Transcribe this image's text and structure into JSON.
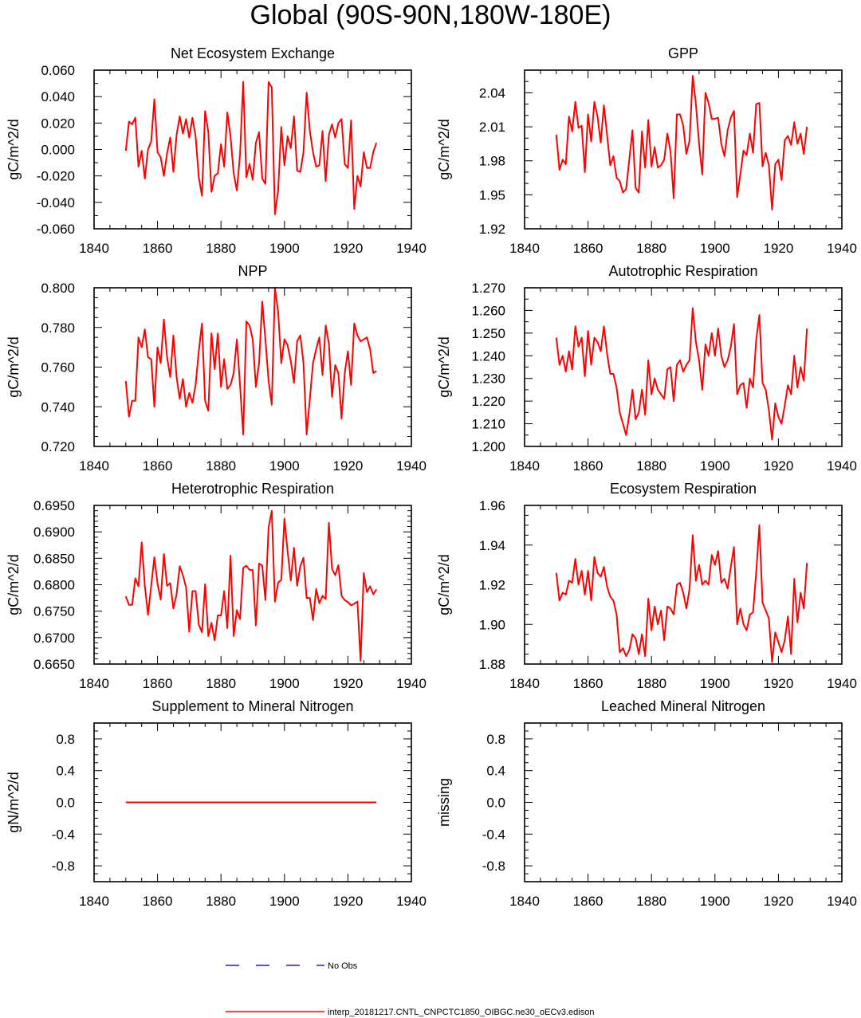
{
  "figure_title": "Global (90S-90N,180W-180E)",
  "legend": {
    "obs_label": "No Obs",
    "obs_color": "#1f1fc8",
    "model_label": "interp_20181217.CNTL_CNPCTC1850_OIBGC.ne30_oECv3.edison",
    "model_color": "#ff0000"
  },
  "chart_data": [
    {
      "type": "line",
      "title": "Net Ecosystem Exchange",
      "ylabel": "gC/m^2/d",
      "xlabel": "",
      "xlim": [
        1840,
        1940
      ],
      "xticks": [
        1840,
        1860,
        1880,
        1900,
        1920,
        1940
      ],
      "ylim": [
        -0.06,
        0.06
      ],
      "yticks": [
        -0.06,
        -0.04,
        -0.02,
        0.0,
        0.02,
        0.04,
        0.06
      ],
      "ytick_labels": [
        "-0.060",
        "-0.040",
        "-0.020",
        "0.000",
        "0.020",
        "0.040",
        "0.060"
      ],
      "yminor": [
        -0.05,
        -0.03,
        -0.01,
        0.01,
        0.03,
        0.05
      ],
      "x_start": 1850,
      "series": [
        {
          "name": "interp_20181217.CNTL_CNPCTC1850_OIBGC.ne30_oECv3.edison",
          "color": "#ff0000",
          "values": [
            -0.001,
            0.021,
            0.019,
            0.024,
            -0.013,
            -0.001,
            -0.022,
            0.0,
            0.006,
            0.038,
            -0.002,
            -0.006,
            -0.02,
            -0.003,
            0.009,
            -0.017,
            0.011,
            0.025,
            0.012,
            0.023,
            0.009,
            0.024,
            0.01,
            -0.021,
            -0.035,
            0.029,
            0.013,
            -0.032,
            -0.02,
            -0.018,
            0.004,
            -0.013,
            0.028,
            0.01,
            -0.018,
            -0.031,
            -0.004,
            0.051,
            -0.021,
            -0.011,
            -0.023,
            0.005,
            0.013,
            -0.022,
            -0.026,
            0.051,
            0.047,
            -0.049,
            -0.031,
            0.017,
            -0.012,
            0.01,
            0.001,
            0.025,
            -0.016,
            -0.017,
            -0.002,
            0.043,
            0.014,
            -0.002,
            -0.013,
            -0.012,
            0.014,
            -0.024,
            0.011,
            0.019,
            0.009,
            0.02,
            0.023,
            -0.011,
            -0.014,
            0.022,
            -0.045,
            -0.02,
            -0.028,
            -0.002,
            -0.014,
            -0.014,
            -0.002,
            0.005
          ]
        }
      ]
    },
    {
      "type": "line",
      "title": "GPP",
      "ylabel": "gC/m^2/d",
      "xlabel": "",
      "xlim": [
        1840,
        1940
      ],
      "xticks": [
        1840,
        1860,
        1880,
        1900,
        1920,
        1940
      ],
      "ylim": [
        1.92,
        2.06
      ],
      "yticks": [
        1.92,
        1.95,
        1.98,
        2.01,
        2.04
      ],
      "ytick_labels": [
        "1.92",
        "1.95",
        "1.98",
        "2.01",
        "2.04"
      ],
      "yminor": [
        1.93,
        1.94,
        1.96,
        1.97,
        1.99,
        2.0,
        2.02,
        2.03,
        2.05,
        2.06
      ],
      "x_start": 1850,
      "series": [
        {
          "name": "interp_20181217.CNTL_CNPCTC1850_OIBGC.ne30_oECv3.edison",
          "color": "#ff0000",
          "values": [
            2.003,
            1.972,
            1.981,
            1.977,
            2.019,
            2.006,
            2.032,
            2.009,
            2.011,
            1.97,
            2.021,
            1.997,
            2.032,
            2.019,
            1.996,
            2.029,
            2.003,
            1.976,
            1.984,
            1.965,
            1.962,
            1.952,
            1.955,
            1.981,
            2.007,
            1.956,
            1.952,
            2.006,
            1.974,
            2.016,
            1.975,
            1.992,
            1.974,
            1.976,
            1.981,
            2.004,
            1.988,
            1.947,
            2.021,
            2.021,
            2.011,
            1.986,
            1.998,
            2.055,
            2.03,
            1.995,
            1.968,
            2.04,
            2.031,
            2.017,
            2.017,
            2.018,
            1.995,
            1.984,
            2.007,
            2.018,
            2.024,
            1.948,
            1.968,
            1.989,
            1.985,
            2.004,
            1.987,
            2.03,
            2.031,
            1.975,
            1.987,
            1.976,
            1.937,
            1.977,
            1.981,
            1.963,
            1.998,
            2.002,
            1.994,
            2.014,
            1.995,
            2.004,
            1.986,
            2.01
          ]
        }
      ]
    },
    {
      "type": "line",
      "title": "NPP",
      "ylabel": "gC/m^2/d",
      "xlabel": "",
      "xlim": [
        1840,
        1940
      ],
      "xticks": [
        1840,
        1860,
        1880,
        1900,
        1920,
        1940
      ],
      "ylim": [
        0.72,
        0.8
      ],
      "yticks": [
        0.72,
        0.74,
        0.76,
        0.78,
        0.8
      ],
      "ytick_labels": [
        "0.720",
        "0.740",
        "0.760",
        "0.780",
        "0.800"
      ],
      "yminor": [
        0.725,
        0.73,
        0.735,
        0.745,
        0.75,
        0.755,
        0.765,
        0.77,
        0.775,
        0.785,
        0.79,
        0.795
      ],
      "x_start": 1850,
      "series": [
        {
          "name": "interp_20181217.CNTL_CNPCTC1850_OIBGC.ne30_oECv3.edison",
          "color": "#ff0000",
          "values": [
            0.753,
            0.735,
            0.743,
            0.743,
            0.775,
            0.77,
            0.779,
            0.765,
            0.764,
            0.74,
            0.77,
            0.762,
            0.784,
            0.765,
            0.755,
            0.776,
            0.755,
            0.744,
            0.754,
            0.74,
            0.747,
            0.742,
            0.751,
            0.768,
            0.782,
            0.743,
            0.738,
            0.777,
            0.759,
            0.777,
            0.75,
            0.764,
            0.749,
            0.751,
            0.757,
            0.774,
            0.751,
            0.726,
            0.783,
            0.781,
            0.774,
            0.75,
            0.762,
            0.793,
            0.774,
            0.753,
            0.741,
            0.8,
            0.788,
            0.762,
            0.774,
            0.771,
            0.763,
            0.752,
            0.773,
            0.776,
            0.762,
            0.726,
            0.744,
            0.762,
            0.769,
            0.775,
            0.756,
            0.781,
            0.772,
            0.745,
            0.761,
            0.757,
            0.734,
            0.757,
            0.768,
            0.751,
            0.782,
            0.776,
            0.773,
            0.774,
            0.775,
            0.769,
            0.757,
            0.758
          ]
        }
      ]
    },
    {
      "type": "line",
      "title": "Autotrophic Respiration",
      "ylabel": "gC/m^2/d",
      "xlabel": "",
      "xlim": [
        1840,
        1940
      ],
      "xticks": [
        1840,
        1860,
        1880,
        1900,
        1920,
        1940
      ],
      "ylim": [
        1.2,
        1.27
      ],
      "yticks": [
        1.2,
        1.21,
        1.22,
        1.23,
        1.24,
        1.25,
        1.26,
        1.27
      ],
      "ytick_labels": [
        "1.200",
        "1.210",
        "1.220",
        "1.230",
        "1.240",
        "1.250",
        "1.260",
        "1.270"
      ],
      "yminor": [
        1.205,
        1.215,
        1.225,
        1.235,
        1.245,
        1.255,
        1.265
      ],
      "x_start": 1850,
      "series": [
        {
          "name": "interp_20181217.CNTL_CNPCTC1850_OIBGC.ne30_oECv3.edison",
          "color": "#ff0000",
          "values": [
            1.248,
            1.236,
            1.24,
            1.233,
            1.242,
            1.234,
            1.253,
            1.244,
            1.248,
            1.231,
            1.251,
            1.236,
            1.248,
            1.246,
            1.242,
            1.253,
            1.241,
            1.232,
            1.232,
            1.226,
            1.215,
            1.21,
            1.205,
            1.214,
            1.225,
            1.212,
            1.215,
            1.225,
            1.214,
            1.238,
            1.223,
            1.23,
            1.225,
            1.223,
            1.221,
            1.234,
            1.235,
            1.22,
            1.236,
            1.238,
            1.233,
            1.236,
            1.238,
            1.261,
            1.246,
            1.238,
            1.225,
            1.245,
            1.24,
            1.25,
            1.24,
            1.252,
            1.24,
            1.235,
            1.238,
            1.244,
            1.254,
            1.223,
            1.227,
            1.228,
            1.217,
            1.23,
            1.226,
            1.247,
            1.258,
            1.228,
            1.225,
            1.216,
            1.203,
            1.219,
            1.213,
            1.21,
            1.218,
            1.227,
            1.223,
            1.24,
            1.226,
            1.235,
            1.229,
            1.252
          ]
        }
      ]
    },
    {
      "type": "line",
      "title": "Heterotrophic Respiration",
      "ylabel": "gC/m^2/d",
      "xlabel": "",
      "xlim": [
        1840,
        1940
      ],
      "xticks": [
        1840,
        1860,
        1880,
        1900,
        1920,
        1940
      ],
      "ylim": [
        0.665,
        0.695
      ],
      "yticks": [
        0.665,
        0.67,
        0.675,
        0.68,
        0.685,
        0.69,
        0.695
      ],
      "ytick_labels": [
        "0.6650",
        "0.6700",
        "0.6750",
        "0.6800",
        "0.6850",
        "0.6900",
        "0.6950"
      ],
      "yminor": [
        0.666,
        0.667,
        0.668,
        0.669,
        0.671,
        0.672,
        0.673,
        0.674,
        0.676,
        0.677,
        0.678,
        0.679,
        0.681,
        0.682,
        0.683,
        0.684,
        0.686,
        0.687,
        0.688,
        0.689,
        0.691,
        0.692,
        0.693,
        0.694
      ],
      "x_start": 1850,
      "series": [
        {
          "name": "interp_20181217.CNTL_CNPCTC1850_OIBGC.ne30_oECv3.edison",
          "color": "#ff0000",
          "values": [
            0.6778,
            0.6762,
            0.6762,
            0.6812,
            0.6797,
            0.688,
            0.6798,
            0.6743,
            0.6798,
            0.6852,
            0.6802,
            0.6772,
            0.6858,
            0.6798,
            0.6803,
            0.6755,
            0.6782,
            0.6835,
            0.6818,
            0.6795,
            0.6711,
            0.6788,
            0.6788,
            0.6725,
            0.671,
            0.6801,
            0.6703,
            0.6728,
            0.6695,
            0.6742,
            0.6742,
            0.6788,
            0.6718,
            0.6855,
            0.6703,
            0.6752,
            0.6735,
            0.6832,
            0.6836,
            0.6828,
            0.6828,
            0.6723,
            0.684,
            0.6836,
            0.6771,
            0.6908,
            0.694,
            0.6768,
            0.6804,
            0.6809,
            0.6925,
            0.6863,
            0.6808,
            0.687,
            0.6798,
            0.6835,
            0.6851,
            0.6775,
            0.6775,
            0.6733,
            0.6792,
            0.6765,
            0.6779,
            0.6773,
            0.6917,
            0.683,
            0.6818,
            0.6837,
            0.6779,
            0.6771,
            0.6767,
            0.6761,
            0.6764,
            0.6768,
            0.6656,
            0.6822,
            0.6786,
            0.6797,
            0.6782,
            0.6791
          ]
        }
      ]
    },
    {
      "type": "line",
      "title": "Ecosystem Respiration",
      "ylabel": "gC/m^2/d",
      "xlabel": "",
      "xlim": [
        1840,
        1940
      ],
      "xticks": [
        1840,
        1860,
        1880,
        1900,
        1920,
        1940
      ],
      "ylim": [
        1.88,
        1.96
      ],
      "yticks": [
        1.88,
        1.9,
        1.92,
        1.94,
        1.96
      ],
      "ytick_labels": [
        "1.88",
        "1.90",
        "1.92",
        "1.94",
        "1.96"
      ],
      "yminor": [
        1.885,
        1.89,
        1.895,
        1.905,
        1.91,
        1.915,
        1.925,
        1.93,
        1.935,
        1.945,
        1.95,
        1.955
      ],
      "x_start": 1850,
      "series": [
        {
          "name": "interp_20181217.CNTL_CNPCTC1850_OIBGC.ne30_oECv3.edison",
          "color": "#ff0000",
          "values": [
            1.926,
            1.912,
            1.916,
            1.915,
            1.922,
            1.921,
            1.933,
            1.92,
            1.927,
            1.915,
            1.927,
            1.912,
            1.934,
            1.926,
            1.924,
            1.929,
            1.919,
            1.914,
            1.912,
            1.905,
            1.886,
            1.888,
            1.884,
            1.887,
            1.895,
            1.893,
            1.885,
            1.895,
            1.884,
            1.913,
            1.897,
            1.909,
            1.9,
            1.907,
            1.892,
            1.909,
            1.908,
            1.905,
            1.92,
            1.921,
            1.916,
            1.908,
            1.918,
            1.945,
            1.922,
            1.93,
            1.92,
            1.922,
            1.92,
            1.935,
            1.93,
            1.937,
            1.921,
            1.923,
            1.918,
            1.929,
            1.939,
            1.9,
            1.908,
            1.9,
            1.897,
            1.905,
            1.906,
            1.926,
            1.95,
            1.911,
            1.907,
            1.903,
            1.881,
            1.896,
            1.891,
            1.886,
            1.892,
            1.904,
            1.885,
            1.923,
            1.901,
            1.916,
            1.908,
            1.931
          ]
        }
      ]
    },
    {
      "type": "line",
      "title": "Supplement to Mineral Nitrogen",
      "ylabel": "gN/m^2/d",
      "xlabel": "",
      "xlim": [
        1840,
        1940
      ],
      "xticks": [
        1840,
        1860,
        1880,
        1900,
        1920,
        1940
      ],
      "ylim": [
        -1.0,
        1.0
      ],
      "yticks": [
        -0.8,
        -0.4,
        0.0,
        0.4,
        0.8
      ],
      "ytick_labels": [
        "-0.8",
        "-0.4",
        "0.0",
        "0.4",
        "0.8"
      ],
      "yminor": [
        -1.0,
        -0.9,
        -0.7,
        -0.6,
        -0.5,
        -0.3,
        -0.2,
        -0.1,
        0.1,
        0.2,
        0.3,
        0.5,
        0.6,
        0.7,
        0.9,
        1.0
      ],
      "x_start": 1850,
      "series": [
        {
          "name": "interp_20181217.CNTL_CNPCTC1850_OIBGC.ne30_oECv3.edison",
          "color": "#ff0000",
          "values": [
            0.0,
            0.0,
            0.0,
            0.0,
            0.0,
            0.0,
            0.0,
            0.0,
            0.0,
            0.0,
            0.0,
            0.0,
            0.0,
            0.0,
            0.0,
            0.0,
            0.0,
            0.0,
            0.0,
            0.0,
            0.0,
            0.0,
            0.0,
            0.0,
            0.0,
            0.0,
            0.0,
            0.0,
            0.0,
            0.0,
            0.0,
            0.0,
            0.0,
            0.0,
            0.0,
            0.0,
            0.0,
            0.0,
            0.0,
            0.0,
            0.0,
            0.0,
            0.0,
            0.0,
            0.0,
            0.0,
            0.0,
            0.0,
            0.0,
            0.0,
            0.0,
            0.0,
            0.0,
            0.0,
            0.0,
            0.0,
            0.0,
            0.0,
            0.0,
            0.0,
            0.0,
            0.0,
            0.0,
            0.0,
            0.0,
            0.0,
            0.0,
            0.0,
            0.0,
            0.0,
            0.0,
            0.0,
            0.0,
            0.0,
            0.0,
            0.0,
            0.0,
            0.0,
            0.0,
            0.0
          ]
        }
      ]
    },
    {
      "type": "line",
      "title": "Leached Mineral Nitrogen",
      "ylabel": "missing",
      "xlabel": "",
      "xlim": [
        1840,
        1940
      ],
      "xticks": [
        1840,
        1860,
        1880,
        1900,
        1920,
        1940
      ],
      "ylim": [
        -1.0,
        1.0
      ],
      "yticks": [
        -0.8,
        -0.4,
        0.0,
        0.4,
        0.8
      ],
      "ytick_labels": [
        "-0.8",
        "-0.4",
        "0.0",
        "0.4",
        "0.8"
      ],
      "yminor": [
        -1.0,
        -0.9,
        -0.7,
        -0.6,
        -0.5,
        -0.3,
        -0.2,
        -0.1,
        0.1,
        0.2,
        0.3,
        0.5,
        0.6,
        0.7,
        0.9,
        1.0
      ],
      "x_start": 1850,
      "series": []
    }
  ]
}
